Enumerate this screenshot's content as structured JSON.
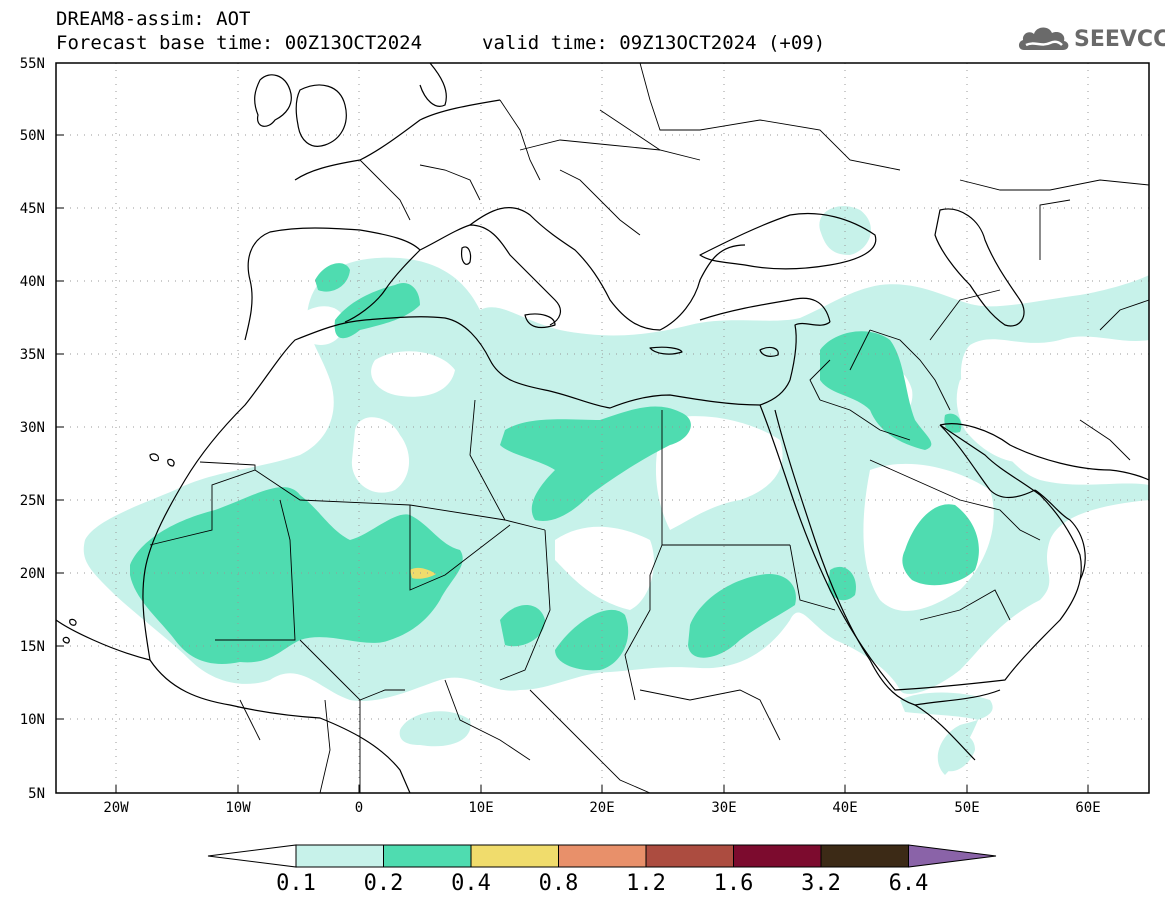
{
  "header": {
    "title_line1": "DREAM8-assim: AOT",
    "title_line2": "Forecast base time: 00Z13OCT2024",
    "valid_time": "valid time: 09Z13OCT2024 (+09)",
    "logo_text": "SEEVCCC",
    "logo_icon": "cloud-icon"
  },
  "map": {
    "lon_range": [
      -25,
      65
    ],
    "lat_range": [
      5,
      55
    ],
    "lat_labels": [
      "55N",
      "50N",
      "45N",
      "40N",
      "35N",
      "30N",
      "25N",
      "20N",
      "15N",
      "10N",
      "5N"
    ],
    "lon_labels": [
      "20W",
      "10W",
      "0",
      "10E",
      "20E",
      "30E",
      "40E",
      "50E",
      "60E"
    ]
  },
  "colorbar": {
    "labels": [
      "0.1",
      "0.2",
      "0.4",
      "0.8",
      "1.2",
      "1.6",
      "3.2",
      "6.4"
    ],
    "colors": [
      "#ffffff",
      "#c7f2ea",
      "#4fdcb0",
      "#f0dc6c",
      "#e8906a",
      "#ac4c40",
      "#7c0b2e",
      "#3c2a16",
      "#8a63a8"
    ]
  }
}
